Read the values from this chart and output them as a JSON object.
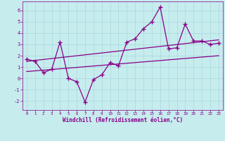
{
  "xlabel": "Windchill (Refroidissement éolien,°C)",
  "xlim": [
    -0.5,
    23.5
  ],
  "ylim": [
    -2.8,
    6.8
  ],
  "yticks": [
    -2,
    -1,
    0,
    1,
    2,
    3,
    4,
    5,
    6
  ],
  "xticks": [
    0,
    1,
    2,
    3,
    4,
    5,
    6,
    7,
    8,
    9,
    10,
    11,
    12,
    13,
    14,
    15,
    16,
    17,
    18,
    19,
    20,
    21,
    22,
    23
  ],
  "bg_color": "#c6ecee",
  "grid_color": "#a8d8da",
  "line_color": "#880088",
  "data_x": [
    0,
    1,
    2,
    3,
    4,
    5,
    6,
    7,
    8,
    9,
    10,
    11,
    12,
    13,
    14,
    15,
    16,
    17,
    18,
    19,
    20,
    21,
    22,
    23
  ],
  "data_y": [
    1.7,
    1.5,
    0.5,
    0.8,
    3.2,
    0.0,
    -0.3,
    -2.1,
    -0.1,
    0.3,
    1.4,
    1.1,
    3.2,
    3.5,
    4.4,
    5.0,
    6.3,
    2.6,
    2.7,
    4.8,
    3.3,
    3.3,
    3.0,
    3.1
  ],
  "trend1_x": [
    0,
    23
  ],
  "trend1_y": [
    0.6,
    2.0
  ],
  "trend2_x": [
    0,
    23
  ],
  "trend2_y": [
    1.5,
    3.4
  ]
}
